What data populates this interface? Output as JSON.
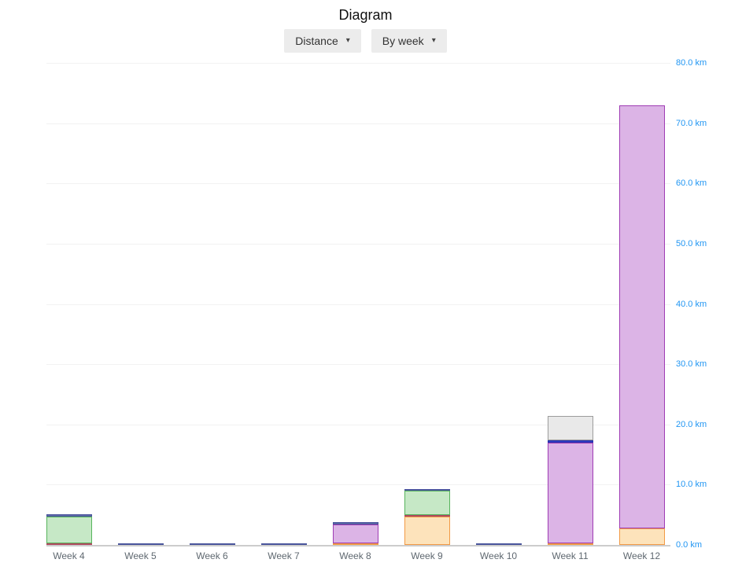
{
  "header": {
    "title": "Diagram"
  },
  "icons": {
    "chevron_down": "▾"
  },
  "toolbar": {
    "metric_dropdown": {
      "label": "Distance",
      "icon": "chevron-down"
    },
    "grouping_dropdown": {
      "label": "By week",
      "icon": "chevron-down"
    }
  },
  "chart_data": {
    "type": "bar",
    "stacked": true,
    "title": "Diagram",
    "xlabel": "",
    "ylabel": "",
    "unit": "km",
    "ylim": [
      0,
      80
    ],
    "grid": true,
    "legend": "none",
    "y_axis_side": "right",
    "ytick_values": [
      0,
      10,
      20,
      30,
      40,
      50,
      60,
      70,
      80
    ],
    "ytick_labels": [
      "0.0 km",
      "10.0 km",
      "20.0 km",
      "30.0 km",
      "40.0 km",
      "50.0 km",
      "60.0 km",
      "70.0 km",
      "80.0 km"
    ],
    "categories": [
      "Week 4",
      "Week 5",
      "Week 6",
      "Week 7",
      "Week 8",
      "Week 9",
      "Week 10",
      "Week 11",
      "Week 12"
    ],
    "totals_km": [
      5.05,
      0.3,
      0.3,
      0.3,
      3.8,
      9.25,
      0.3,
      21.4,
      72.95
    ],
    "bars": [
      {
        "category": "Week 4",
        "segments": [
          {
            "color": "rose",
            "value": 0.3
          },
          {
            "color": "green",
            "value": 4.4
          },
          {
            "color": "navy",
            "value": 0.35
          }
        ]
      },
      {
        "category": "Week 5",
        "segments": [
          {
            "color": "navy",
            "value": 0.3
          }
        ]
      },
      {
        "category": "Week 6",
        "segments": [
          {
            "color": "navy",
            "value": 0.3
          }
        ]
      },
      {
        "category": "Week 7",
        "segments": [
          {
            "color": "navy",
            "value": 0.3
          }
        ]
      },
      {
        "category": "Week 8",
        "segments": [
          {
            "color": "orange",
            "value": 0.25
          },
          {
            "color": "purple",
            "value": 3.2
          },
          {
            "color": "navy",
            "value": 0.35
          }
        ]
      },
      {
        "category": "Week 9",
        "segments": [
          {
            "color": "orange",
            "value": 4.7
          },
          {
            "color": "rose",
            "value": 0.25
          },
          {
            "color": "green",
            "value": 4.0
          },
          {
            "color": "navy",
            "value": 0.3
          }
        ]
      },
      {
        "category": "Week 10",
        "segments": [
          {
            "color": "navy",
            "value": 0.3
          }
        ]
      },
      {
        "category": "Week 11",
        "segments": [
          {
            "color": "orange",
            "value": 0.25
          },
          {
            "color": "purple",
            "value": 16.7
          },
          {
            "color": "blue",
            "value": 0.45
          },
          {
            "color": "gray",
            "value": 4.0
          }
        ]
      },
      {
        "category": "Week 12",
        "segments": [
          {
            "color": "orange",
            "value": 2.75
          },
          {
            "color": "purple",
            "value": 70.2
          }
        ]
      }
    ],
    "colors": {
      "navy": {
        "fill": "#5e6aa8",
        "border": "#49549b"
      },
      "green": {
        "fill": "#c6e8c6",
        "border": "#57b45c"
      },
      "rose": {
        "fill": "#c0556a",
        "border": "#b04a5f"
      },
      "purple": {
        "fill": "#dcb4e6",
        "border": "#9f3cb4"
      },
      "orange": {
        "fill": "#fde3bb",
        "border": "#f29a45"
      },
      "gray": {
        "fill": "#e9e9e9",
        "border": "#9c9c9c"
      },
      "blue": {
        "fill": "#2f3cc4",
        "border": "#2733ad"
      }
    },
    "axis_colors": {
      "tick_label": "#2196f3",
      "category_label": "#5f6870",
      "baseline": "#cccccc",
      "gridline": "#f2f2f2"
    }
  }
}
